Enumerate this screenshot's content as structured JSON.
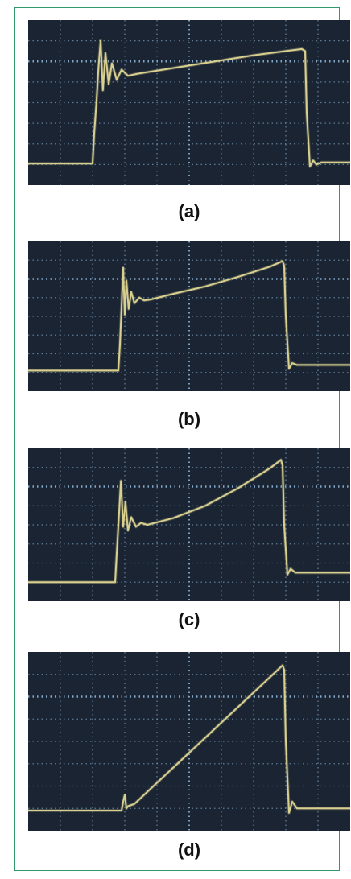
{
  "colors": {
    "screen": "#1a2433",
    "grid": "#8fb6d8",
    "trace": "#d9cf8e",
    "border": "#2e9a6c"
  },
  "chart_data": [
    {
      "type": "line",
      "caption": "(a)",
      "grid": true,
      "x_range": [
        0,
        10
      ],
      "y_range": [
        0,
        8
      ],
      "series": [
        {
          "x": [
            0,
            2.0,
            2.05,
            2.12,
            2.18,
            2.25,
            2.32,
            2.4,
            2.5,
            2.6,
            2.75,
            2.9,
            3.1,
            3.4,
            4,
            5,
            6,
            7,
            8,
            8.5,
            8.6,
            8.65,
            8.75,
            8.85,
            8.95,
            9.1,
            10
          ],
          "y": [
            1.05,
            1.05,
            2.5,
            4.0,
            5.6,
            7.0,
            4.6,
            6.4,
            4.9,
            5.9,
            5.1,
            5.6,
            5.3,
            5.4,
            5.55,
            5.8,
            6.05,
            6.3,
            6.5,
            6.6,
            6.5,
            3.5,
            0.9,
            1.2,
            1.0,
            1.1,
            1.1
          ]
        }
      ]
    },
    {
      "type": "line",
      "caption": "(b)",
      "grid": true,
      "x_range": [
        0,
        10
      ],
      "y_range": [
        0,
        8
      ],
      "series": [
        {
          "x": [
            0,
            2.8,
            2.85,
            2.9,
            2.95,
            3.0,
            3.05,
            3.12,
            3.2,
            3.3,
            3.45,
            3.6,
            3.8,
            4.5,
            5.5,
            6.5,
            7.5,
            7.9,
            7.95,
            8.0,
            8.1,
            8.2,
            8.35,
            10
          ],
          "y": [
            1.1,
            1.1,
            2.5,
            4.5,
            6.6,
            4.1,
            5.9,
            4.4,
            5.3,
            4.7,
            5.0,
            4.85,
            4.9,
            5.2,
            5.6,
            6.1,
            6.65,
            6.95,
            6.7,
            4.0,
            1.2,
            1.5,
            1.4,
            1.4
          ]
        }
      ]
    },
    {
      "type": "line",
      "caption": "(c)",
      "grid": true,
      "x_range": [
        0,
        10
      ],
      "y_range": [
        0,
        8
      ],
      "series": [
        {
          "x": [
            0,
            2.7,
            2.75,
            2.82,
            2.88,
            2.95,
            3.02,
            3.1,
            3.2,
            3.35,
            3.5,
            3.7,
            4.5,
            5.5,
            6.5,
            7.5,
            7.85,
            7.9,
            7.95,
            8.05,
            8.15,
            8.3,
            10
          ],
          "y": [
            1.0,
            1.0,
            2.5,
            4.5,
            6.3,
            3.9,
            5.2,
            3.7,
            4.4,
            3.9,
            4.1,
            4.0,
            4.35,
            5.0,
            5.9,
            6.95,
            7.4,
            7.1,
            4.0,
            1.4,
            1.7,
            1.5,
            1.5
          ]
        }
      ]
    },
    {
      "type": "line",
      "caption": "(d)",
      "grid": true,
      "x_range": [
        0,
        10
      ],
      "y_range": [
        0,
        8
      ],
      "series": [
        {
          "x": [
            0,
            2.9,
            2.95,
            3.0,
            3.05,
            3.1,
            3.2,
            3.3,
            7.9,
            7.95,
            8.0,
            8.1,
            8.2,
            8.35,
            10
          ],
          "y": [
            0.9,
            0.9,
            1.3,
            1.6,
            1.0,
            1.1,
            1.15,
            1.2,
            7.4,
            7.2,
            4.0,
            0.8,
            1.3,
            1.0,
            1.0
          ]
        }
      ]
    }
  ]
}
